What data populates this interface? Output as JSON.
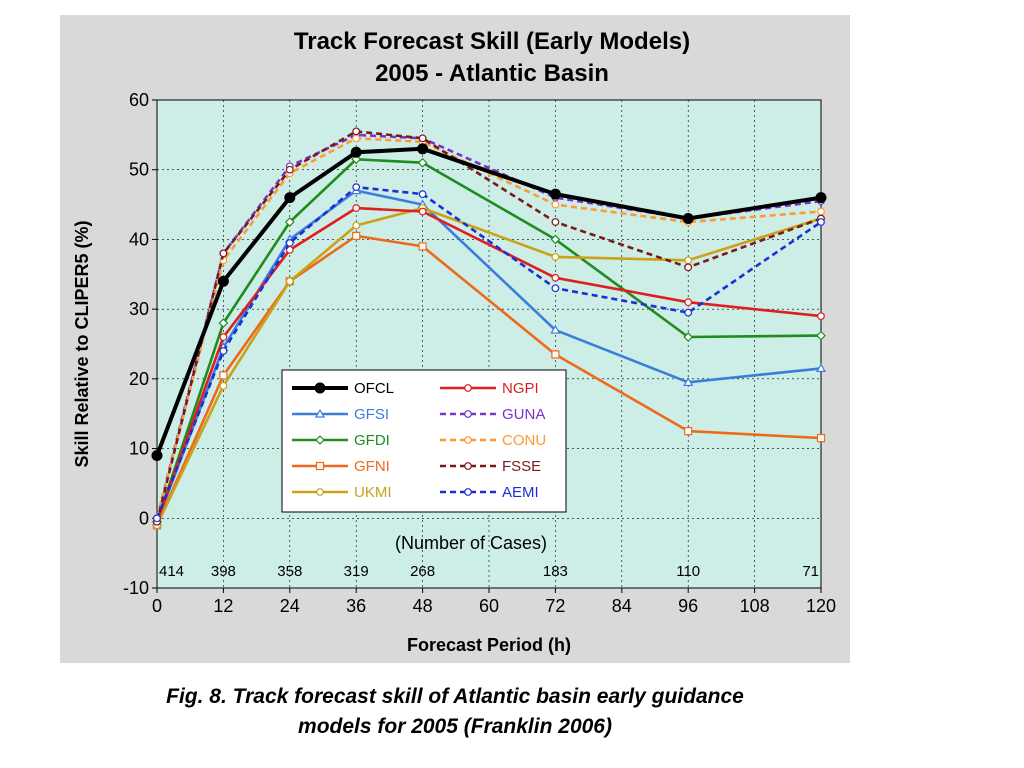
{
  "chart_data": {
    "type": "line",
    "title": "Track Forecast Skill (Early Models)",
    "subtitle": "2005 - Atlantic Basin",
    "xlabel": "Forecast Period (h)",
    "ylabel": "Skill Relative to CLIPER5 (%)",
    "xlim": [
      0,
      120
    ],
    "ylim": [
      -10,
      60
    ],
    "x_ticks": [
      "0",
      "12",
      "24",
      "36",
      "48",
      "60",
      "72",
      "84",
      "96",
      "108",
      "120"
    ],
    "y_ticks": [
      "60",
      "50",
      "40",
      "30",
      "20",
      "10",
      "0",
      "-10"
    ],
    "grid": true,
    "legend_position": "center-left",
    "annotation": "(Number of Cases)",
    "case_counts": [
      {
        "x": 0,
        "label": "414"
      },
      {
        "x": 12,
        "label": "398"
      },
      {
        "x": 24,
        "label": "358"
      },
      {
        "x": 36,
        "label": "319"
      },
      {
        "x": 48,
        "label": "268"
      },
      {
        "x": 72,
        "label": "183"
      },
      {
        "x": 96,
        "label": "110"
      },
      {
        "x": 120,
        "label": "71"
      }
    ],
    "x": [
      0,
      12,
      24,
      36,
      48,
      72,
      96,
      120
    ],
    "series": [
      {
        "name": "OFCL",
        "color": "#000000",
        "dashed": false,
        "marker": "filled-circle",
        "values": [
          9,
          34,
          46,
          52.5,
          53,
          46.5,
          43,
          46
        ]
      },
      {
        "name": "GFSI",
        "color": "#3b7ddd",
        "dashed": false,
        "marker": "triangle",
        "values": [
          -0.5,
          24.5,
          40,
          47,
          45,
          27,
          19.5,
          21.5
        ]
      },
      {
        "name": "GFDI",
        "color": "#1e8c1e",
        "dashed": false,
        "marker": "diamond",
        "values": [
          -0.5,
          28,
          42.5,
          51.5,
          51,
          40,
          26,
          26.2
        ]
      },
      {
        "name": "GFNI",
        "color": "#ee6a1a",
        "dashed": false,
        "marker": "square",
        "values": [
          -1,
          20.5,
          34,
          40.5,
          39,
          23.5,
          12.5,
          11.5
        ]
      },
      {
        "name": "UKMI",
        "color": "#c9a21a",
        "dashed": false,
        "marker": "circle",
        "values": [
          -1,
          19,
          34,
          42,
          44.5,
          37.5,
          37,
          43
        ]
      },
      {
        "name": "NGPI",
        "color": "#dd1f1f",
        "dashed": false,
        "marker": "circle",
        "values": [
          -0.5,
          26,
          38.5,
          44.5,
          44,
          34.5,
          31,
          29
        ]
      },
      {
        "name": "GUNA",
        "color": "#7a33cc",
        "dashed": true,
        "marker": "circle",
        "values": [
          0,
          38,
          50.5,
          55,
          54.5,
          46,
          43,
          45.5
        ]
      },
      {
        "name": "CONU",
        "color": "#ff9933",
        "dashed": true,
        "marker": "circle",
        "values": [
          0,
          37,
          49.5,
          54.5,
          54,
          45,
          42.5,
          44
        ]
      },
      {
        "name": "FSSE",
        "color": "#7a1a1a",
        "dashed": true,
        "marker": "circle",
        "values": [
          -0.5,
          38,
          50,
          55.5,
          54.5,
          42.5,
          36,
          43
        ]
      },
      {
        "name": "AEMI",
        "color": "#1a2fd6",
        "dashed": true,
        "marker": "circle",
        "values": [
          0,
          24,
          39.5,
          47.5,
          46.5,
          33,
          29.5,
          42.5
        ]
      }
    ]
  },
  "caption": {
    "line1": "Fig. 8. Track forecast skill of Atlantic basin early guidance",
    "line2": "models for 2005 (Franklin 2006)"
  }
}
